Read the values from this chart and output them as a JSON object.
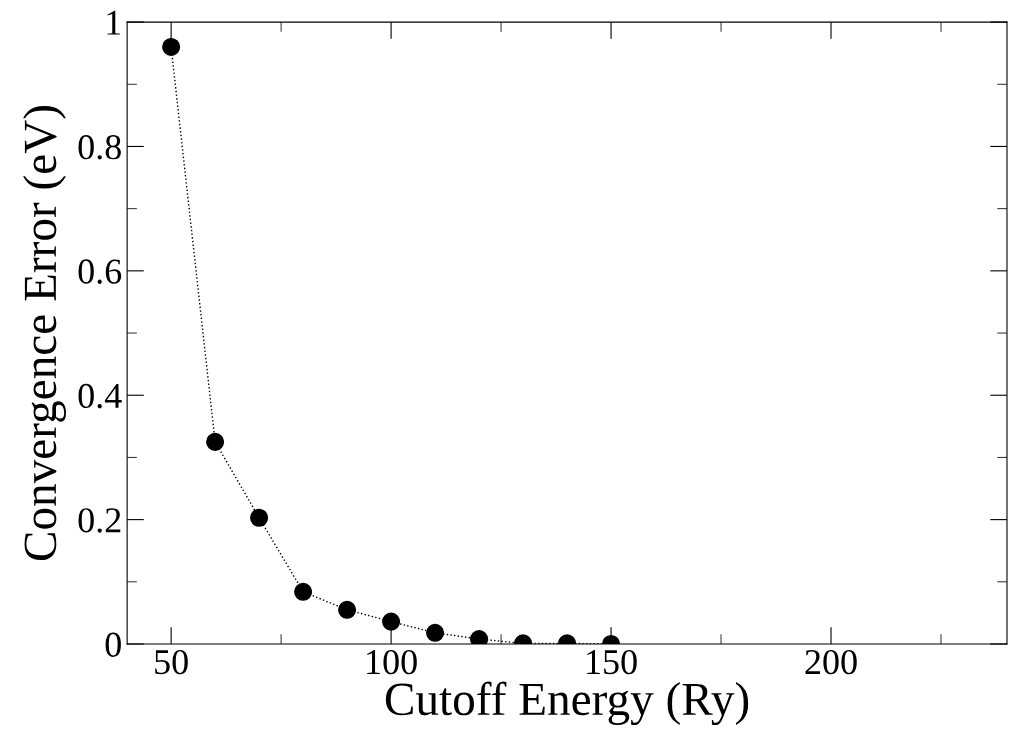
{
  "chart_data": {
    "type": "line",
    "xlabel": "Cutoff Energy (Ry)",
    "ylabel": "Convergence Error (eV)",
    "x": [
      50,
      60,
      70,
      80,
      90,
      100,
      110,
      120,
      130,
      140,
      150
    ],
    "series": [
      {
        "color": "#000000",
        "values": [
          0.96,
          0.325,
          0.203,
          0.084,
          0.055,
          0.036,
          0.018,
          0.008,
          0.001,
          0.001,
          0.0
        ]
      }
    ],
    "xlim": [
      40,
      240
    ],
    "xticks": [
      50,
      100,
      150,
      200
    ],
    "ylim": [
      0,
      1
    ],
    "yticks": [
      0,
      0.2,
      0.4,
      0.6,
      0.8,
      1
    ],
    "marker": "circle",
    "line_style": "dotted",
    "grid": false,
    "legend": false
  }
}
